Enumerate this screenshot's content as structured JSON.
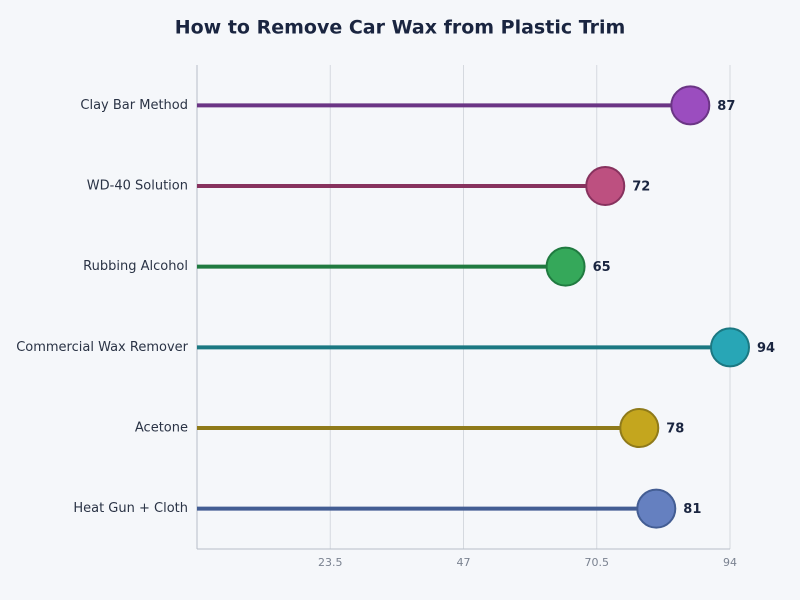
{
  "chart_data": {
    "type": "lollipop",
    "title": "How to Remove Car Wax from Plastic Trim",
    "categories": [
      "Clay Bar Method",
      "WD-40 Solution",
      "Rubbing Alcohol",
      "Commercial Wax Remover",
      "Acetone",
      "Heat Gun + Cloth"
    ],
    "values": [
      87,
      72,
      65,
      94,
      78,
      81
    ],
    "colors": [
      "#9b4dbf",
      "#bd5080",
      "#35a85a",
      "#28a6b6",
      "#c4a61e",
      "#6580c0"
    ],
    "line_colors": [
      "#6b3585",
      "#87325e",
      "#207a40",
      "#1b7882",
      "#8f7a1a",
      "#435d93"
    ],
    "xlim": [
      0,
      94
    ],
    "xticks": [
      23.5,
      47,
      70.5,
      94
    ],
    "grid": true
  }
}
